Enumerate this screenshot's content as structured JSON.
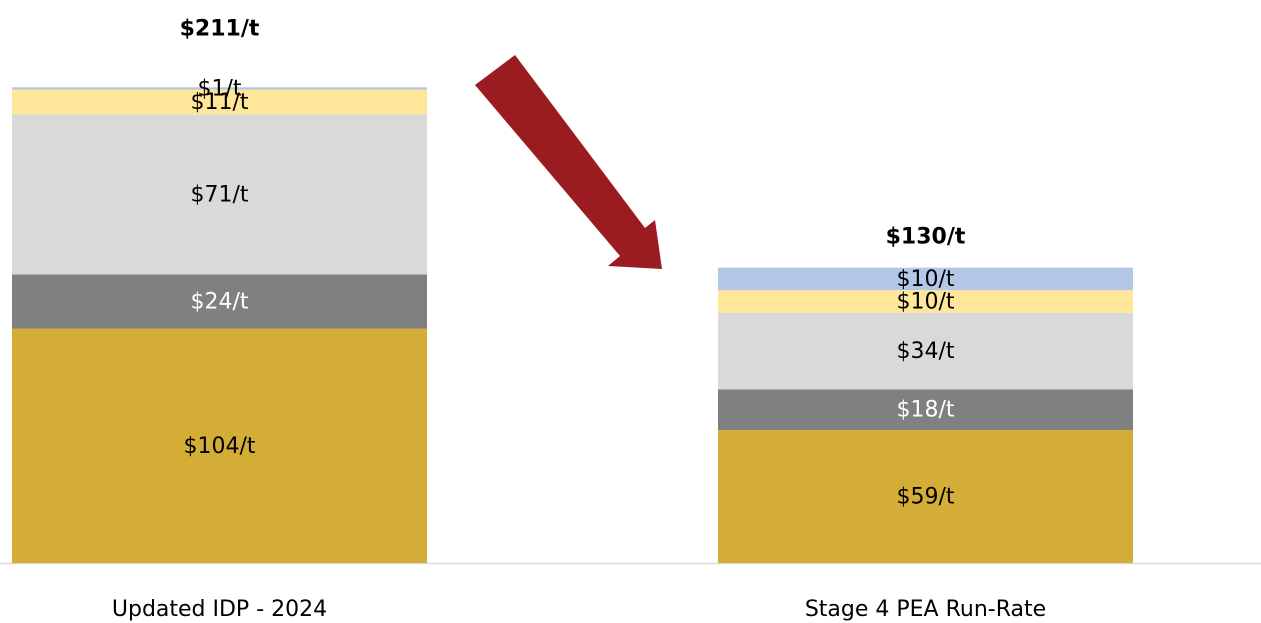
{
  "chart_data": {
    "type": "stacked_bar",
    "categories": [
      "Updated IDP - 2024",
      "Stage 4 PEA Run-Rate"
    ],
    "series": [
      {
        "color": "#d4ad37",
        "label_color": "#000000",
        "values": [
          104,
          59
        ],
        "value_labels": [
          "$104/t",
          "$59/t"
        ]
      },
      {
        "color": "#808080",
        "label_color": "#ffffff",
        "values": [
          24,
          18
        ],
        "value_labels": [
          "$24/t",
          "$18/t"
        ]
      },
      {
        "color": "#d9d9d9",
        "label_color": "#000000",
        "values": [
          71,
          34
        ],
        "value_labels": [
          "$71/t",
          "$34/t"
        ]
      },
      {
        "color": "#ffe699",
        "label_color": "#000000",
        "values": [
          11,
          10
        ],
        "value_labels": [
          "$11/t",
          "$10/t"
        ]
      },
      {
        "color": "#b4c7e7",
        "label_color": "#000000",
        "values": [
          1,
          10
        ],
        "value_labels": [
          "$1/t",
          "$10/t"
        ]
      }
    ],
    "totals": [
      211,
      130
    ],
    "total_labels": [
      "$211/t",
      "$130/t"
    ],
    "ylim": [
      0,
      220
    ]
  }
}
